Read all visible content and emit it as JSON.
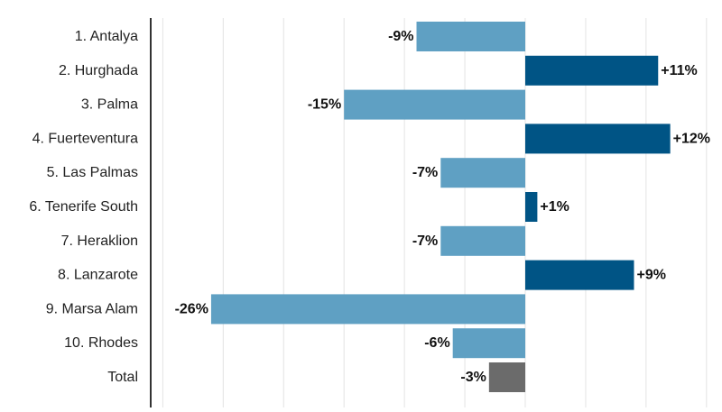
{
  "chart_data": {
    "type": "bar",
    "orientation": "horizontal",
    "categories": [
      "1. Antalya",
      "2. Hurghada",
      "3. Palma",
      "4. Fuerteventura",
      "5. Las Palmas",
      "6. Tenerife South",
      "7. Heraklion",
      "8. Lanzarote",
      "9. Marsa Alam",
      "10. Rhodes",
      "Total"
    ],
    "values": [
      -9,
      11,
      -15,
      12,
      -7,
      1,
      -7,
      9,
      -26,
      -6,
      -3
    ],
    "value_labels": [
      "-9%",
      "+11%",
      "-15%",
      "+12%",
      "-7%",
      "+1%",
      "-7%",
      "+9%",
      "-26%",
      "-6%",
      "-3%"
    ],
    "unit": "%",
    "xlim": [
      -31,
      15
    ],
    "grid": true,
    "colors": {
      "negative": "#5fa0c3",
      "positive": "#005485",
      "total": "#6b6b6b",
      "gridline": "#e4e4e4",
      "axis": "#333333"
    }
  }
}
